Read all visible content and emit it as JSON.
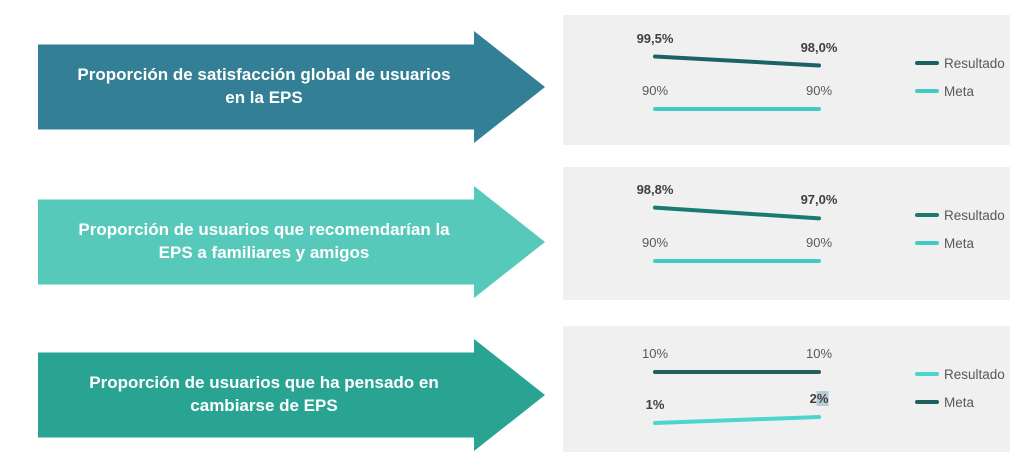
{
  "page": {
    "background": "#ffffff"
  },
  "rows": [
    {
      "arrow": {
        "label": "Proporción de satisfacción global de usuarios en la EPS",
        "lines": [
          "Proporción de satisfacción global de usuarios",
          "en la EPS"
        ],
        "color": "#337f96",
        "text_color": "#ffffff"
      }
    },
    {
      "arrow": {
        "label": "Proporción de usuarios que recomendarían la EPS a familiares y amigos",
        "lines": [
          "Proporción de usuarios que recomendarían la",
          "EPS a familiares y amigos"
        ],
        "color": "#57c9bb",
        "text_color": "#ffffff"
      }
    },
    {
      "arrow": {
        "label": "Proporción de usuarios que ha pensado en cambiarse de EPS",
        "lines": [
          "Proporción de usuarios que ha pensado en",
          "cambiarse de EPS"
        ],
        "color": "#29a493",
        "text_color": "#ffffff"
      }
    }
  ],
  "chart_data": [
    {
      "type": "line",
      "title": "Proporción de satisfacción global de usuarios en la EPS",
      "legend_position": "right",
      "grid": false,
      "series": [
        {
          "name": "Resultado",
          "values": [
            99.5,
            98.0
          ],
          "labels": [
            "99,5%",
            "98,0%"
          ],
          "color": "#1c6165",
          "emphasis": true
        },
        {
          "name": "Meta",
          "values": [
            90,
            90
          ],
          "labels": [
            "90%",
            "90%"
          ],
          "color": "#41cbc0",
          "emphasis": false
        }
      ]
    },
    {
      "type": "line",
      "title": "Proporción de usuarios que recomendarían la EPS a familiares y amigos",
      "legend_position": "right",
      "grid": false,
      "series": [
        {
          "name": "Resultado",
          "values": [
            98.8,
            97.0
          ],
          "labels": [
            "98,8%",
            "97,0%"
          ],
          "color": "#1b7a6f",
          "emphasis": true
        },
        {
          "name": "Meta",
          "values": [
            90,
            90
          ],
          "labels": [
            "90%",
            "90%"
          ],
          "color": "#41cbc0",
          "emphasis": false
        }
      ]
    },
    {
      "type": "line",
      "title": "Proporción de usuarios que ha pensado en cambiarse de EPS",
      "legend_position": "right",
      "grid": false,
      "series": [
        {
          "name": "Resultado",
          "values": [
            1,
            2
          ],
          "labels": [
            "1%",
            "2%"
          ],
          "color": "#4cd5ca",
          "emphasis": true,
          "highlight_last_label": true
        },
        {
          "name": "Meta",
          "values": [
            10,
            10
          ],
          "labels": [
            "10%",
            "10%"
          ],
          "color": "#215e60",
          "emphasis": false
        }
      ]
    }
  ]
}
